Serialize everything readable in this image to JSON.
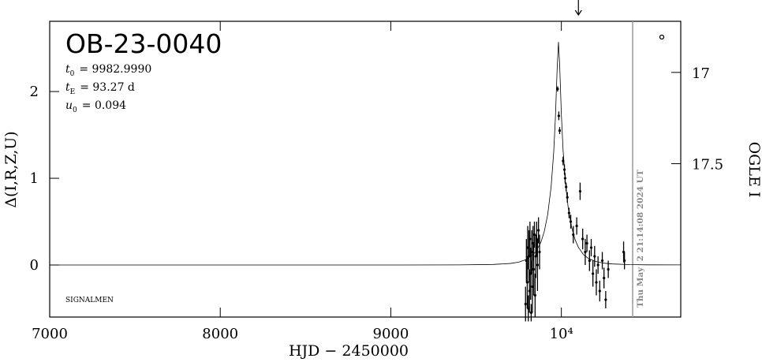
{
  "chart_data": {
    "type": "scatter",
    "title": "OB-23-0040",
    "params": [
      {
        "symbol": "t",
        "sub": "0",
        "text": "= 9982.9990"
      },
      {
        "symbol": "t",
        "sub": "E",
        "text": "= 93.27 d"
      },
      {
        "symbol": "u",
        "sub": "0",
        "text": "= 0.094"
      }
    ],
    "footer": "SIGNALMEN",
    "timestamp": "Thu May  2 21:14:08 2024 UT",
    "now_hjd": 10418,
    "arrow_hjd": 10100,
    "xlabel": "HJD − 2450000",
    "ylabel": "Δ(I,R,Z,U)",
    "y2label": "OGLE I",
    "color": "#000000",
    "xlim": [
      7000,
      10700
    ],
    "ylim": [
      -0.6,
      2.81
    ],
    "y2lim": [
      18.34,
      16.72
    ],
    "xticks": [
      7000,
      8000,
      9000,
      {
        "value": 10000,
        "label": "10⁴"
      }
    ],
    "yticks": [
      0,
      1,
      2
    ],
    "y2ticks": [
      17,
      17.5
    ],
    "x": [
      9790,
      9795,
      9800,
      9803,
      9806,
      9810,
      9813,
      9816,
      9820,
      9823,
      9826,
      9830,
      9834,
      9838,
      9842,
      9846,
      9850,
      9855,
      9860,
      9866,
      9872,
      9978,
      9985,
      9990,
      10010,
      10018,
      10022,
      10028,
      10035,
      10045,
      10055,
      10070,
      10090,
      10110,
      10125,
      10140,
      10150,
      10165,
      10175,
      10185,
      10195,
      10205,
      10215,
      10225,
      10240,
      10250,
      10260,
      10275,
      10365,
      10370
    ],
    "values": [
      -0.45,
      0.05,
      -0.2,
      0.2,
      -0.5,
      0.1,
      -0.3,
      0.3,
      -0.1,
      -0.55,
      0.15,
      -0.25,
      0.25,
      -0.05,
      0.35,
      -0.35,
      0.1,
      0.3,
      0.0,
      0.4,
      0.15,
      2.03,
      1.72,
      1.55,
      1.2,
      1.1,
      1.0,
      0.9,
      0.78,
      0.6,
      0.5,
      0.35,
      0.45,
      0.85,
      0.3,
      0.15,
      0.25,
      0.05,
      0.2,
      -0.1,
      0.1,
      -0.2,
      0.0,
      -0.3,
      0.05,
      -0.15,
      -0.4,
      -0.05,
      0.15,
      0.05
    ],
    "errors": [
      0.2,
      0.25,
      0.3,
      0.25,
      0.15,
      0.3,
      0.25,
      0.2,
      0.3,
      0.1,
      0.25,
      0.3,
      0.2,
      0.3,
      0.15,
      0.25,
      0.25,
      0.2,
      0.3,
      0.15,
      0.2,
      0.03,
      0.05,
      0.04,
      0.05,
      0.06,
      0.06,
      0.05,
      0.06,
      0.06,
      0.08,
      0.1,
      0.1,
      0.1,
      0.12,
      0.15,
      0.1,
      0.12,
      0.1,
      0.15,
      0.12,
      0.15,
      0.1,
      0.12,
      0.1,
      0.12,
      0.1,
      0.1,
      0.12,
      0.1
    ],
    "model": {
      "x": [
        7000,
        8000,
        9000,
        9400,
        9600,
        9700,
        9750,
        9800,
        9850,
        9880,
        9900,
        9920,
        9940,
        9955,
        9965,
        9975,
        9983,
        9990,
        10000,
        10010,
        10025,
        10040,
        10060,
        10080,
        10100,
        10130,
        10160,
        10200,
        10250,
        10300,
        10400,
        10500,
        10700
      ],
      "values": [
        0,
        0,
        0,
        0.0013,
        0.0063,
        0.0177,
        0.0329,
        0.0673,
        0.152,
        0.263,
        0.387,
        0.583,
        0.903,
        1.298,
        1.696,
        2.244,
        2.571,
        2.305,
        1.737,
        1.328,
        0.924,
        0.662,
        0.437,
        0.295,
        0.203,
        0.12,
        0.0738,
        0.0409,
        0.0213,
        0.012,
        0.0045,
        0.002,
        0.001
      ]
    }
  }
}
